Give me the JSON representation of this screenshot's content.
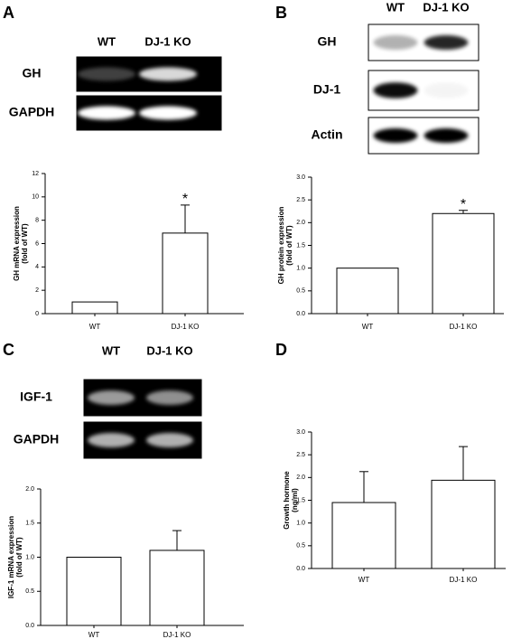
{
  "chart_data": [
    {
      "type": "bar",
      "panel": "A",
      "blot": {
        "lanes": [
          "WT",
          "DJ-1 KO"
        ],
        "rows": [
          "GH",
          "GAPDH"
        ]
      },
      "ylabel": [
        "GH mRNA expression",
        "(fold of WT)"
      ],
      "categories": [
        "WT",
        "DJ-1 KO"
      ],
      "values": [
        1,
        6.9
      ],
      "errors": [
        null,
        2.4
      ],
      "annotations": [
        null,
        "*"
      ],
      "color": "#ffffff",
      "ylim": [
        0,
        12
      ],
      "yticks": [
        0,
        2,
        4,
        6,
        8,
        10,
        12
      ]
    },
    {
      "type": "bar",
      "panel": "B",
      "blot": {
        "lanes": [
          "WT",
          "DJ-1 KO"
        ],
        "rows": [
          "GH",
          "DJ-1",
          "Actin"
        ]
      },
      "ylabel": [
        "GH protein expression",
        "(fold of WT)"
      ],
      "categories": [
        "WT",
        "DJ-1 KO"
      ],
      "values": [
        1.0,
        2.2
      ],
      "errors": [
        null,
        0.07
      ],
      "annotations": [
        null,
        "*"
      ],
      "color": "#ffffff",
      "ylim": [
        0,
        3.0
      ],
      "yticks": [
        {
          "value": 0,
          "label": "0.0"
        },
        0.5,
        {
          "value": 1,
          "label": "1.0"
        },
        1.5,
        {
          "value": 2,
          "label": "2.0"
        },
        2.5,
        {
          "value": 3,
          "label": "3.0"
        }
      ]
    },
    {
      "type": "bar",
      "panel": "C",
      "blot": {
        "lanes": [
          "WT",
          "DJ-1 KO"
        ],
        "rows": [
          "IGF-1",
          "GAPDH"
        ]
      },
      "ylabel": [
        "IGF-1 mRNA expression",
        "(fold of WT)"
      ],
      "categories": [
        "WT",
        "DJ-1 KO"
      ],
      "values": [
        1.0,
        1.1
      ],
      "errors": [
        null,
        0.29
      ],
      "color": "#ffffff",
      "ylim": [
        0,
        2.0
      ],
      "yticks": [
        {
          "value": 0,
          "label": "0.0"
        },
        0.5,
        {
          "value": 1,
          "label": "1.0"
        },
        1.5,
        {
          "value": 2,
          "label": "2.0"
        }
      ]
    },
    {
      "type": "bar",
      "panel": "D",
      "ylabel": [
        "Growth hormone",
        "(ng/ml)"
      ],
      "categories": [
        "WT",
        "DJ-1 KO"
      ],
      "values": [
        1.45,
        1.94
      ],
      "errors": [
        0.68,
        0.74
      ],
      "color": "#ffffff",
      "ylim": [
        0,
        3.0
      ],
      "yticks": [
        {
          "value": 0,
          "label": "0.0"
        },
        0.5,
        {
          "value": 1,
          "label": "1.0"
        },
        1.5,
        {
          "value": 2,
          "label": "2.0"
        },
        2.5,
        {
          "value": 3,
          "label": "3.0"
        }
      ]
    }
  ]
}
